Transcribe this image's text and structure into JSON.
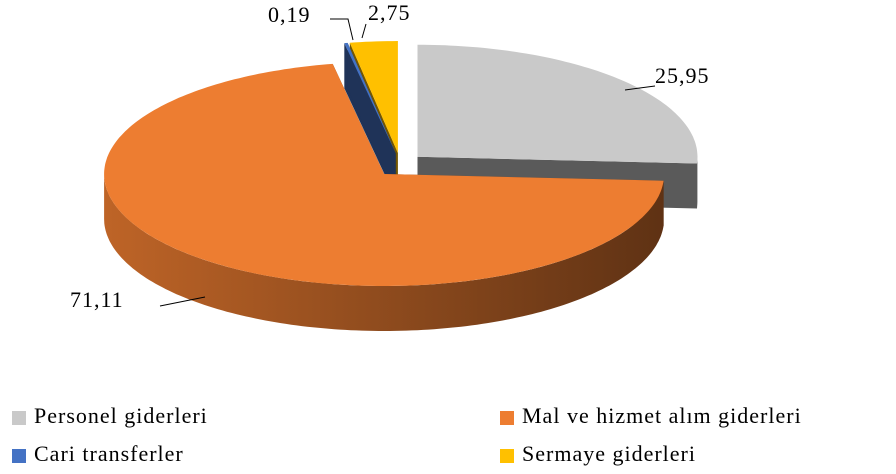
{
  "chart_data": {
    "type": "pie3d",
    "categories": [
      "Personel giderleri",
      "Mal ve hizmet alım giderleri",
      "Cari transferler",
      "Sermaye giderleri"
    ],
    "values": [
      25.95,
      71.11,
      0.19,
      2.75
    ],
    "value_labels": [
      "25,95",
      "71,11",
      "0,19",
      "2,75"
    ],
    "colors": [
      "#c9c9c9",
      "#ed7d31",
      "#4472c4",
      "#ffc000"
    ]
  }
}
